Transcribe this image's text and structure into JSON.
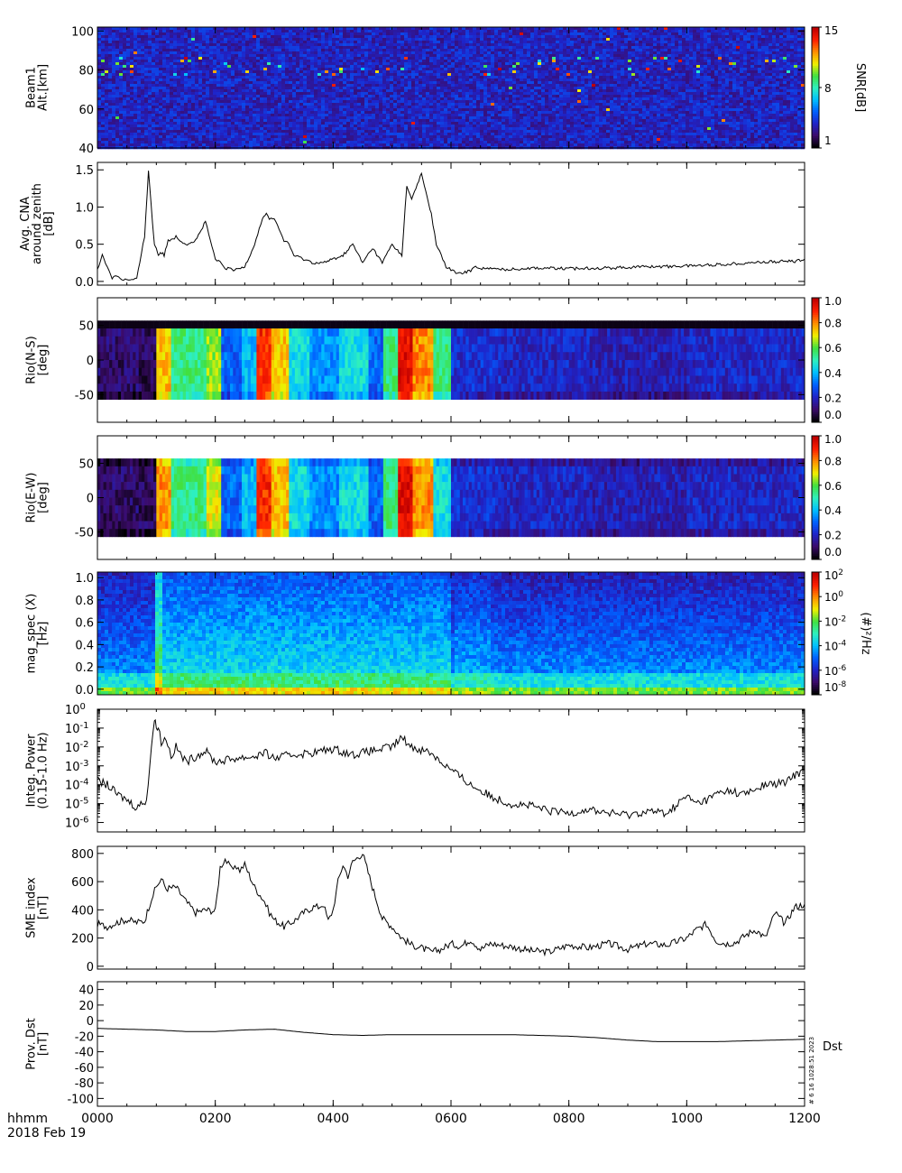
{
  "footer": {
    "time_format": "hhmm",
    "date": "2018 Feb 19",
    "stamp": "# 6 16 1028:51 2023"
  },
  "x_axis": {
    "range": [
      0,
      720
    ],
    "ticks": [
      0,
      120,
      240,
      360,
      480,
      600,
      720
    ],
    "tick_labels": [
      "0000",
      "0200",
      "0400",
      "0600",
      "0800",
      "1000",
      "1200"
    ]
  },
  "colors": {
    "line": "#000000",
    "colormap": [
      "#000000",
      "#3b0b6b",
      "#1f23c8",
      "#0060ff",
      "#00c0ff",
      "#2ef0c0",
      "#40e040",
      "#f0f000",
      "#ff9000",
      "#ff2000",
      "#c00000"
    ]
  },
  "chart_data": [
    {
      "type": "heatmap",
      "panel": "beam1-snr",
      "ylabel": [
        "Beam1",
        "Alt.[km]"
      ],
      "ylim": [
        40,
        102
      ],
      "yticks": [
        40,
        60,
        80,
        100
      ],
      "colorbar": {
        "label": "SNR[dB]",
        "ticks": [
          "1",
          "8",
          "15"
        ],
        "range": [
          1,
          15
        ]
      },
      "echo_band_alt_km": [
        78,
        88
      ],
      "description_values": {
        "background_snr_db": 2,
        "peak_snr_db": 15
      }
    },
    {
      "type": "line",
      "panel": "avg-cna",
      "ylabel": [
        "Avg. CNA",
        "around zenith",
        "[dB]"
      ],
      "ylim": [
        -0.05,
        1.6
      ],
      "yticks": [
        0.0,
        0.5,
        1.0,
        1.5
      ],
      "ytick_labels": [
        "0.0",
        "0.5",
        "1.0",
        "1.5"
      ],
      "x": [
        0,
        5,
        10,
        15,
        20,
        25,
        30,
        35,
        40,
        48,
        52,
        56,
        58,
        60,
        62,
        64,
        68,
        72,
        80,
        90,
        100,
        110,
        115,
        120,
        125,
        130,
        140,
        150,
        160,
        168,
        172,
        175,
        180,
        185,
        190,
        195,
        200,
        210,
        220,
        230,
        240,
        250,
        260,
        270,
        280,
        290,
        300,
        310,
        315,
        320,
        330,
        340,
        345,
        350,
        355,
        360,
        365,
        370,
        380,
        385,
        390,
        400,
        420,
        440,
        460,
        480,
        500,
        520,
        540,
        560,
        580,
        600,
        620,
        640,
        660,
        680,
        700,
        710,
        720
      ],
      "y": [
        0.15,
        0.35,
        0.2,
        0.05,
        0.08,
        0.03,
        0.02,
        0.02,
        0.03,
        0.6,
        1.5,
        0.8,
        0.5,
        0.45,
        0.35,
        0.4,
        0.35,
        0.55,
        0.6,
        0.5,
        0.55,
        0.8,
        0.55,
        0.3,
        0.25,
        0.18,
        0.15,
        0.2,
        0.5,
        0.85,
        0.9,
        0.85,
        0.85,
        0.7,
        0.55,
        0.5,
        0.35,
        0.3,
        0.25,
        0.25,
        0.3,
        0.35,
        0.5,
        0.25,
        0.45,
        0.25,
        0.5,
        0.35,
        1.3,
        1.1,
        1.45,
        0.9,
        0.5,
        0.35,
        0.2,
        0.15,
        0.12,
        0.1,
        0.15,
        0.2,
        0.18,
        0.17,
        0.16,
        0.18,
        0.18,
        0.17,
        0.18,
        0.18,
        0.19,
        0.2,
        0.2,
        0.21,
        0.22,
        0.23,
        0.25,
        0.26,
        0.27,
        0.27,
        0.3
      ]
    },
    {
      "type": "heatmap",
      "panel": "rio-ns",
      "ylabel": [
        "Rio(N-S)",
        "[deg]"
      ],
      "ylim": [
        -90,
        90
      ],
      "yticks": [
        -50,
        0,
        50
      ],
      "colorbar": {
        "ticks": [
          "0.0",
          "0.2",
          "0.4",
          "0.6",
          "0.8",
          "1.0"
        ],
        "range": [
          0,
          1
        ]
      },
      "time_segments": [
        [
          0,
          40,
          0.1
        ],
        [
          40,
          60,
          0.08
        ],
        [
          60,
          75,
          0.75
        ],
        [
          75,
          110,
          0.55
        ],
        [
          110,
          125,
          0.65
        ],
        [
          125,
          145,
          0.3
        ],
        [
          145,
          160,
          0.4
        ],
        [
          160,
          175,
          0.9
        ],
        [
          175,
          195,
          0.75
        ],
        [
          195,
          215,
          0.45
        ],
        [
          215,
          245,
          0.35
        ],
        [
          245,
          275,
          0.45
        ],
        [
          275,
          290,
          0.3
        ],
        [
          290,
          305,
          0.55
        ],
        [
          305,
          320,
          0.95
        ],
        [
          320,
          340,
          0.8
        ],
        [
          340,
          360,
          0.55
        ],
        [
          360,
          410,
          0.22
        ],
        [
          410,
          500,
          0.2
        ],
        [
          500,
          600,
          0.18
        ],
        [
          600,
          720,
          0.2
        ]
      ]
    },
    {
      "type": "heatmap",
      "panel": "rio-ew",
      "ylabel": [
        "Rio(E-W)",
        "[deg]"
      ],
      "ylim": [
        -90,
        90
      ],
      "yticks": [
        -50,
        0,
        50
      ],
      "colorbar": {
        "ticks": [
          "0.0",
          "0.2",
          "0.4",
          "0.6",
          "0.8",
          "1.0"
        ],
        "range": [
          0,
          1
        ]
      },
      "time_segments": [
        [
          0,
          40,
          0.1
        ],
        [
          40,
          60,
          0.08
        ],
        [
          60,
          75,
          0.8
        ],
        [
          75,
          110,
          0.55
        ],
        [
          110,
          125,
          0.7
        ],
        [
          125,
          145,
          0.3
        ],
        [
          145,
          160,
          0.4
        ],
        [
          160,
          175,
          0.9
        ],
        [
          175,
          195,
          0.75
        ],
        [
          195,
          215,
          0.45
        ],
        [
          215,
          245,
          0.35
        ],
        [
          245,
          275,
          0.45
        ],
        [
          275,
          290,
          0.3
        ],
        [
          290,
          305,
          0.55
        ],
        [
          305,
          320,
          0.95
        ],
        [
          320,
          340,
          0.8
        ],
        [
          340,
          360,
          0.45
        ],
        [
          360,
          410,
          0.22
        ],
        [
          410,
          500,
          0.2
        ],
        [
          500,
          600,
          0.18
        ],
        [
          600,
          720,
          0.2
        ]
      ]
    },
    {
      "type": "heatmap",
      "panel": "mag-spec",
      "ylabel": [
        "mag_spec (X)",
        "[Hz]"
      ],
      "ylim": [
        -0.05,
        1.05
      ],
      "yticks": [
        0.0,
        0.2,
        0.4,
        0.6,
        0.8,
        1.0
      ],
      "ytick_labels": [
        "0.0",
        "0.2",
        "0.4",
        "0.6",
        "0.8",
        "1.0"
      ],
      "colorbar": {
        "label": "(#)²/Hz",
        "ticks": [
          "10^-8",
          "10^-6",
          "10^-4",
          "10^-2",
          "10^0",
          "10^2"
        ],
        "scale": "log",
        "range": [
          -9,
          2.5
        ]
      }
    },
    {
      "type": "line",
      "panel": "integ-power",
      "ylabel": [
        "Integ. Power",
        "(0.15-1.0 Hz)"
      ],
      "yscale": "log",
      "ylim": [
        -6.5,
        0
      ],
      "yticks": [
        -6,
        -5,
        -4,
        -3,
        -2,
        -1,
        0
      ],
      "ytick_labels": [
        "10^-6",
        "10^-5",
        "10^-4",
        "10^-3",
        "10^-2",
        "10^-1",
        "10^0"
      ],
      "x": [
        0,
        10,
        20,
        30,
        40,
        50,
        55,
        58,
        60,
        62,
        65,
        70,
        75,
        80,
        90,
        100,
        110,
        120,
        140,
        160,
        170,
        180,
        200,
        220,
        240,
        260,
        280,
        300,
        310,
        320,
        340,
        350,
        360,
        370,
        380,
        390,
        400,
        420,
        440,
        460,
        480,
        500,
        520,
        540,
        560,
        580,
        600,
        610,
        620,
        630,
        640,
        660,
        680,
        700,
        710,
        720
      ],
      "y": [
        -3.8,
        -4.0,
        -4.5,
        -4.8,
        -5.2,
        -4.8,
        -2.0,
        -0.5,
        -1.0,
        -0.8,
        -1.8,
        -1.5,
        -2.5,
        -2.0,
        -2.8,
        -2.5,
        -2.2,
        -2.8,
        -2.6,
        -2.5,
        -2.3,
        -2.6,
        -2.4,
        -2.3,
        -2.1,
        -2.4,
        -2.2,
        -2.0,
        -1.5,
        -2.0,
        -2.3,
        -2.8,
        -3.2,
        -3.6,
        -4.0,
        -4.3,
        -4.6,
        -5.0,
        -5.1,
        -5.4,
        -5.5,
        -5.3,
        -5.5,
        -5.6,
        -5.4,
        -5.5,
        -4.6,
        -5.0,
        -4.8,
        -4.5,
        -4.3,
        -4.5,
        -4.0,
        -3.9,
        -3.5,
        -3.2
      ]
    },
    {
      "type": "line",
      "panel": "sme-index",
      "ylabel": [
        "SME index",
        "[nT]"
      ],
      "ylim": [
        -20,
        850
      ],
      "yticks": [
        0,
        200,
        400,
        600,
        800
      ],
      "ytick_labels": [
        "0",
        "200",
        "400",
        "600",
        "800"
      ],
      "x": [
        0,
        10,
        20,
        30,
        40,
        48,
        55,
        60,
        65,
        70,
        80,
        90,
        95,
        100,
        110,
        120,
        125,
        130,
        135,
        140,
        145,
        150,
        160,
        170,
        175,
        180,
        190,
        200,
        210,
        220,
        225,
        230,
        235,
        240,
        245,
        250,
        255,
        260,
        270,
        280,
        290,
        300,
        310,
        320,
        330,
        340,
        350,
        360,
        370,
        380,
        390,
        400,
        420,
        440,
        460,
        480,
        500,
        520,
        540,
        560,
        580,
        600,
        610,
        620,
        630,
        640,
        650,
        660,
        670,
        680,
        690,
        700,
        710,
        720
      ],
      "y": [
        300,
        280,
        310,
        330,
        310,
        320,
        480,
        560,
        620,
        550,
        560,
        460,
        420,
        380,
        400,
        390,
        700,
        760,
        700,
        720,
        680,
        720,
        560,
        460,
        380,
        330,
        280,
        320,
        380,
        420,
        420,
        440,
        320,
        400,
        600,
        720,
        640,
        740,
        800,
        560,
        340,
        280,
        200,
        150,
        130,
        100,
        120,
        160,
        140,
        190,
        120,
        160,
        140,
        110,
        100,
        150,
        130,
        160,
        120,
        160,
        150,
        200,
        260,
        300,
        180,
        160,
        170,
        220,
        260,
        200,
        380,
        300,
        420,
        440
      ]
    },
    {
      "type": "line",
      "panel": "prov-dst",
      "ylabel": [
        "Prov. Dst",
        "[nT]"
      ],
      "ylim": [
        -110,
        50
      ],
      "yticks": [
        -100,
        -80,
        -60,
        -40,
        -20,
        0,
        20,
        40
      ],
      "ytick_labels": [
        "-100",
        "-80",
        "-60",
        "-40",
        "-20",
        "0",
        "20",
        "40"
      ],
      "legend": "Dst",
      "x": [
        0,
        30,
        60,
        90,
        120,
        150,
        180,
        210,
        240,
        270,
        300,
        330,
        360,
        390,
        420,
        450,
        480,
        510,
        540,
        570,
        600,
        630,
        660,
        690,
        720
      ],
      "y": [
        -10,
        -11,
        -12,
        -14,
        -14,
        -12,
        -11,
        -15,
        -18,
        -19,
        -18,
        -18,
        -18,
        -18,
        -18,
        -19,
        -20,
        -22,
        -25,
        -27,
        -27,
        -27,
        -26,
        -25,
        -24
      ]
    }
  ]
}
